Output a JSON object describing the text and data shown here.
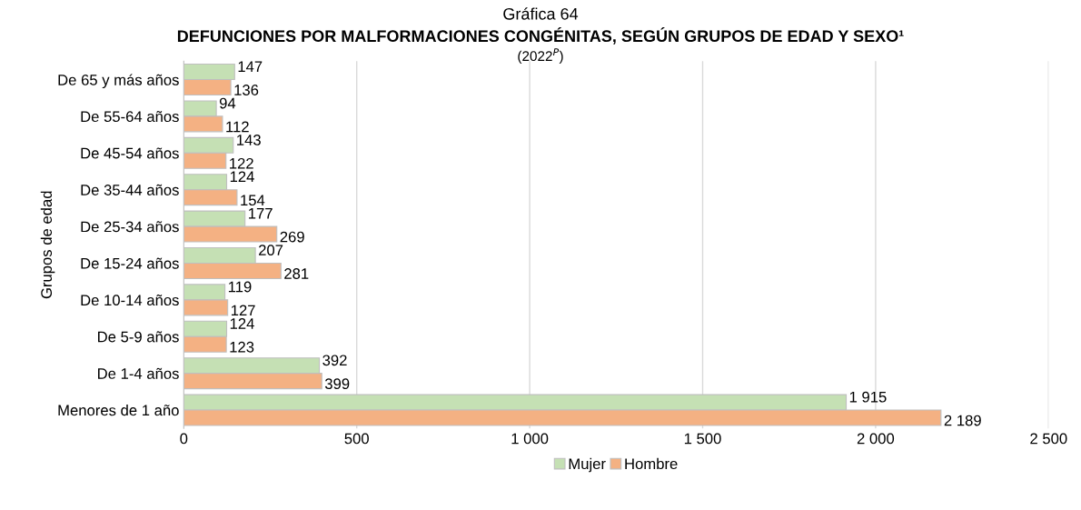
{
  "chart_data": {
    "type": "bar",
    "orientation": "horizontal",
    "title": "Gráfica 64",
    "subtitle": "DEFUNCIONES POR MALFORMACIONES CONGÉNITAS, SEGÚN GRUPOS DE EDAD Y SEXO¹",
    "annotations": [
      "(2022$^{P}$)"
    ],
    "ylabel": "Grupos de edad",
    "categories": [
      "De 65 y más años",
      "De 55-64 años",
      "De 45-54 años",
      "De 35-44 años",
      "De 25-34 años",
      "De 15-24 años",
      "De 10-14 años",
      "De 5-9 años",
      "De 1-4 años",
      "Menores de 1 año"
    ],
    "series": [
      {
        "name": "Mujer",
        "color": "#c5e0b4",
        "values": [
          147,
          94,
          143,
          124,
          177,
          207,
          119,
          124,
          392,
          1915
        ],
        "value_labels": [
          "147",
          "94",
          "143",
          "124",
          "177",
          "207",
          "119",
          "124",
          "392",
          "1 915"
        ]
      },
      {
        "name": "Hombre",
        "color": "#f4b183",
        "values": [
          136,
          112,
          122,
          154,
          269,
          281,
          127,
          123,
          399,
          2189
        ],
        "value_labels": [
          "136",
          "112",
          "122",
          "154",
          "269",
          "281",
          "127",
          "123",
          "399",
          "2 189"
        ]
      }
    ],
    "xlim": [
      0,
      2500
    ],
    "xticks": [
      0,
      500,
      {
        "value": 1000,
        "label": "1 000"
      },
      {
        "value": 1500,
        "label": "1 500"
      },
      {
        "value": 2000,
        "label": "2 000"
      },
      {
        "value": 2500,
        "label": "2 500"
      }
    ],
    "grid": "x",
    "legend": "bottom"
  }
}
